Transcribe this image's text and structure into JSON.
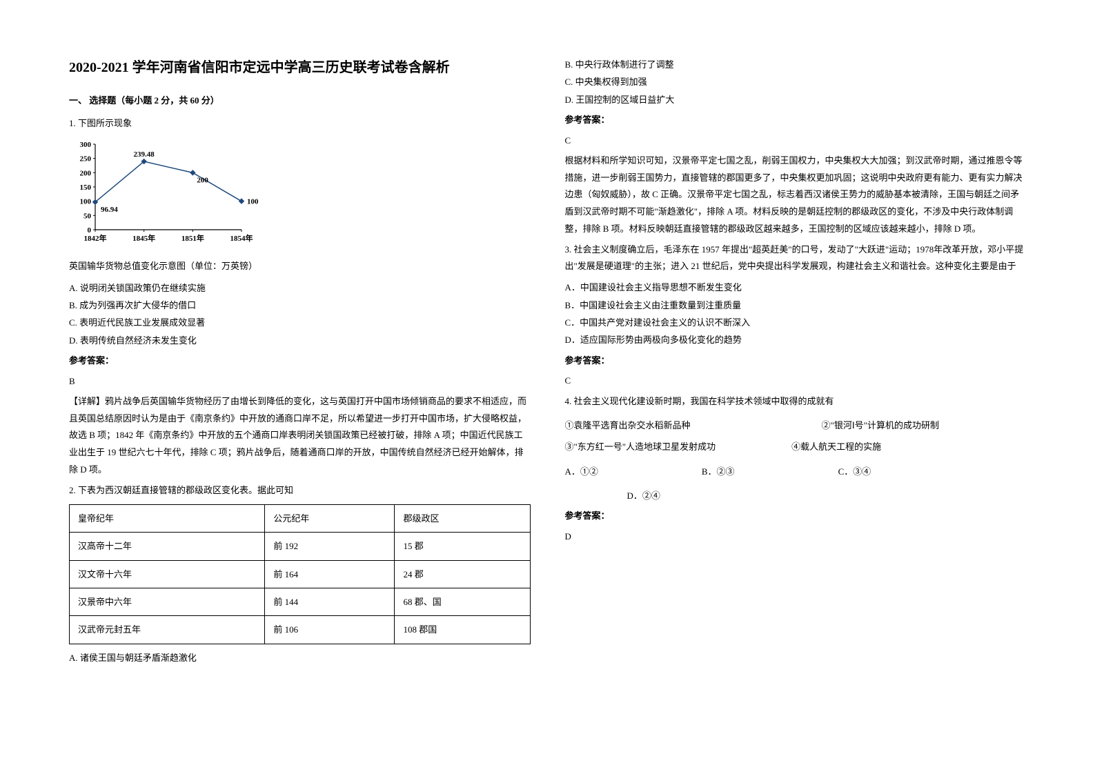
{
  "title": "2020-2021 学年河南省信阳市定远中学高三历史联考试卷含解析",
  "section1": {
    "header": "一、 选择题（每小题 2 分，共 60 分）"
  },
  "q1": {
    "stem": "1. 下图所示现象",
    "chart": {
      "type": "line",
      "x_labels": [
        "1842年",
        "1845年",
        "1851年",
        "1854年"
      ],
      "values": [
        96.94,
        239.48,
        200,
        100
      ],
      "point_labels": [
        "96.94",
        "239.48",
        "200",
        "100"
      ],
      "ylim": [
        0,
        300
      ],
      "ytick_step": 50,
      "yticks": [
        0,
        50,
        100,
        150,
        200,
        250,
        300
      ],
      "line_color": "#1f497d",
      "background_color": "#ffffff",
      "axis_color": "#000000",
      "label_fontsize": 11
    },
    "caption": "英国输华货物总值变化示意图（单位：万英镑）",
    "A": "A. 说明闭关锁国政策仍在继续实施",
    "B": "B. 成为列强再次扩大侵华的借口",
    "C": "C. 表明近代民族工业发展成效显著",
    "D": "D. 表明传统自然经济未发生变化",
    "answer_label": "参考答案：",
    "answer": "B",
    "explanation": "【详解】鸦片战争后英国输华货物经历了由增长到降低的变化，这与英国打开中国市场倾销商品的要求不相适应，而且英国总结原因时认为是由于《南京条约》中开放的通商口岸不足，所以希望进一步打开中国市场，扩大侵略权益，故选 B 项；1842 年《南京条约》中开放的五个通商口岸表明闭关锁国政策已经被打破，排除 A 项；中国近代民族工业出生于 19 世纪六七十年代，排除 C 项；鸦片战争后，随着通商口岸的开放，中国传统自然经济已经开始解体，排除 D 项。"
  },
  "q2": {
    "stem": "2. 下表为西汉朝廷直接管辖的郡级政区变化表。据此可知",
    "table": {
      "columns": [
        "皇帝纪年",
        "公元纪年",
        "郡级政区"
      ],
      "rows": [
        [
          "汉高帝十二年",
          "前 192",
          "15 郡"
        ],
        [
          "汉文帝十六年",
          "前 164",
          "24 郡"
        ],
        [
          "汉景帝中六年",
          "前 144",
          "68 郡、国"
        ],
        [
          "汉武帝元封五年",
          "前 106",
          "108 郡国"
        ]
      ]
    },
    "A": "A. 诸侯王国与朝廷矛盾渐趋激化",
    "B": "B. 中央行政体制进行了调整",
    "C": "C. 中央集权得到加强",
    "D": "D. 王国控制的区域日益扩大",
    "answer_label": "参考答案：",
    "answer": "C",
    "explanation": "根据材料和所学知识可知，汉景帝平定七国之乱，削弱王国权力，中央集权大大加强；到汉武帝时期，通过推恩令等措施，进一步削弱王国势力，直接管辖的郡国更多了，中央集权更加巩固；这说明中央政府更有能力、更有实力解决边患（匈奴威胁），故 C 正确。汉景帝平定七国之乱，标志着西汉诸侯王势力的威胁基本被清除，王国与朝廷之间矛盾到汉武帝时期不可能\"渐趋激化\"，排除 A 项。材料反映的是朝廷控制的郡级政区的变化，不涉及中央行政体制调整，排除 B 项。材料反映朝廷直接管辖的郡级政区越来越多，王国控制的区域应该越来越小，排除 D 项。"
  },
  "q3": {
    "stem": "3. 社会主义制度确立后，毛泽东在 1957 年提出\"超英赶美\"的口号，发动了\"大跃进\"运动；1978年改革开放，邓小平提出\"发展是硬道理\"的主张；进入 21 世纪后，党中央提出科学发展观，构建社会主义和谐社会。这种变化主要是由于",
    "A": "A．中国建设社会主义指导思想不断发生变化",
    "B": "B．中国建设社会主义由注重数量到注重质量",
    "C": "C．中国共产党对建设社会主义的认识不断深入",
    "D": "D．适应国际形势由两极向多极化变化的趋势",
    "answer_label": "参考答案：",
    "answer": "C"
  },
  "q4": {
    "stem": "4. 社会主义现代化建设新时期，我国在科学技术领域中取得的成就有",
    "s1": "①袁隆平选育出杂交水稻新品种",
    "s2": "②\"银河Ⅰ号\"计算机的成功研制",
    "s3": "③\"东方红一号\"人造地球卫星发射成功",
    "s4": "④载人航天工程的实施",
    "optA": "A．①②",
    "optB": "B．②③",
    "optC": "C．③④",
    "optD": "D．②④",
    "answer_label": "参考答案：",
    "answer": "D"
  }
}
